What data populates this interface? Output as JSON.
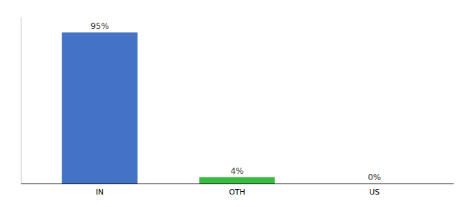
{
  "chart_data": {
    "type": "bar",
    "categories": [
      "IN",
      "OTH",
      "US"
    ],
    "values": [
      95,
      4,
      0
    ],
    "value_labels": [
      "95%",
      "4%",
      "0%"
    ],
    "data_labels": true,
    "colors": [
      "#4472c4",
      "#3cb943",
      "#4472c4"
    ],
    "ylim": [
      0,
      105
    ],
    "tick_labels": "x"
  }
}
